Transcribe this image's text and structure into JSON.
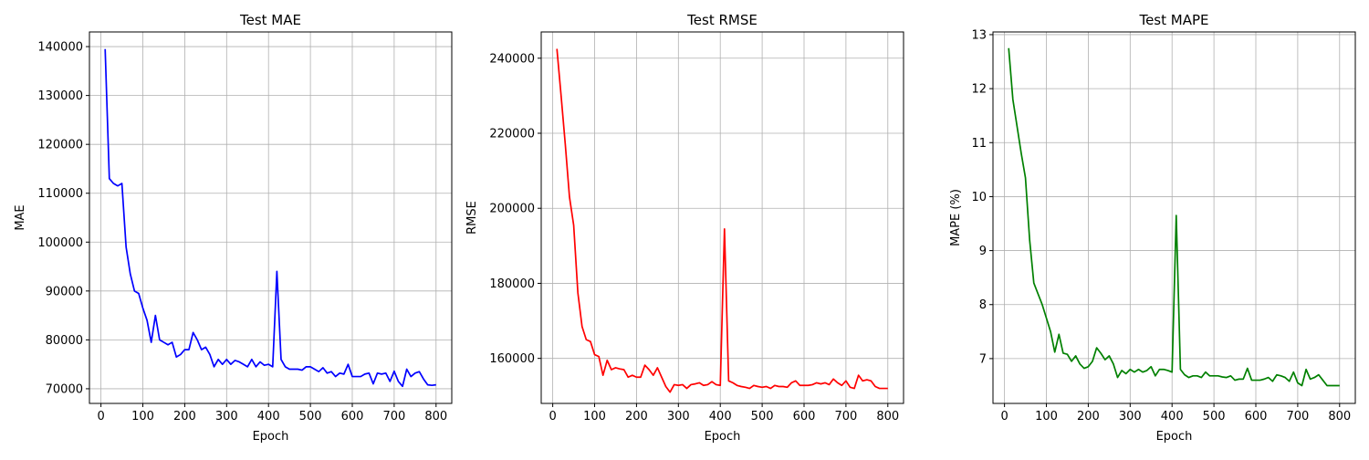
{
  "chart_data": [
    {
      "type": "line",
      "title": "Test MAE",
      "xlabel": "Epoch",
      "ylabel": "MAE",
      "xlim": [
        -27.5,
        837.5
      ],
      "ylim": [
        67000,
        143000
      ],
      "xticks": [
        0,
        100,
        200,
        300,
        400,
        500,
        600,
        700,
        800
      ],
      "yticks": [
        70000,
        80000,
        90000,
        100000,
        110000,
        120000,
        130000,
        140000
      ],
      "grid": true,
      "color": "#0000ff",
      "x": [
        10,
        20,
        30,
        40,
        50,
        60,
        70,
        80,
        90,
        100,
        110,
        120,
        130,
        140,
        150,
        160,
        170,
        180,
        190,
        200,
        210,
        220,
        230,
        240,
        250,
        260,
        270,
        280,
        290,
        300,
        310,
        320,
        330,
        340,
        350,
        360,
        370,
        380,
        390,
        400,
        410,
        420,
        430,
        440,
        450,
        460,
        470,
        480,
        490,
        500,
        510,
        520,
        530,
        540,
        550,
        560,
        570,
        580,
        590,
        600,
        610,
        620,
        630,
        640,
        650,
        660,
        670,
        680,
        690,
        700,
        710,
        720,
        730,
        740,
        750,
        760,
        770,
        780,
        790,
        800
      ],
      "y": [
        139500,
        113000,
        112000,
        111500,
        112000,
        99000,
        93500,
        90000,
        89500,
        86500,
        84000,
        79500,
        85000,
        80000,
        79500,
        79000,
        79500,
        76500,
        77000,
        78000,
        78000,
        81500,
        80000,
        78000,
        78500,
        77000,
        74500,
        76000,
        75000,
        76000,
        75000,
        75800,
        75500,
        75000,
        74500,
        76000,
        74500,
        75500,
        74800,
        75000,
        74500,
        94000,
        76000,
        74500,
        74000,
        74000,
        74000,
        73800,
        74500,
        74500,
        74000,
        73500,
        74300,
        73200,
        73500,
        72500,
        73200,
        73000,
        75000,
        72500,
        72500,
        72500,
        73000,
        73200,
        71000,
        73200,
        73000,
        73200,
        71500,
        73600,
        71500,
        70500,
        74000,
        72500,
        73200,
        73500,
        72000,
        70800,
        70700,
        70800
      ]
    },
    {
      "type": "line",
      "title": "Test RMSE",
      "xlabel": "Epoch",
      "ylabel": "RMSE",
      "xlim": [
        -27.5,
        837.5
      ],
      "ylim": [
        148000,
        247000
      ],
      "xticks": [
        0,
        100,
        200,
        300,
        400,
        500,
        600,
        700,
        800
      ],
      "yticks": [
        160000,
        180000,
        200000,
        220000,
        240000
      ],
      "grid": true,
      "color": "#ff0000",
      "x": [
        10,
        20,
        30,
        40,
        50,
        60,
        70,
        80,
        90,
        100,
        110,
        120,
        130,
        140,
        150,
        160,
        170,
        180,
        190,
        200,
        210,
        220,
        230,
        240,
        250,
        260,
        270,
        280,
        290,
        300,
        310,
        320,
        330,
        340,
        350,
        360,
        370,
        380,
        390,
        400,
        410,
        420,
        430,
        440,
        450,
        460,
        470,
        480,
        490,
        500,
        510,
        520,
        530,
        540,
        550,
        560,
        570,
        580,
        590,
        600,
        610,
        620,
        630,
        640,
        650,
        660,
        670,
        680,
        690,
        700,
        710,
        720,
        730,
        740,
        750,
        760,
        770,
        780,
        790,
        800
      ],
      "y": [
        242500,
        230000,
        217000,
        203000,
        195500,
        177500,
        168500,
        165000,
        164500,
        161000,
        160500,
        155500,
        159500,
        157000,
        157500,
        157200,
        157000,
        155000,
        155500,
        155000,
        155000,
        158200,
        157000,
        155500,
        157500,
        155000,
        152500,
        151000,
        153000,
        152800,
        153000,
        152000,
        153000,
        153200,
        153500,
        152800,
        153000,
        153800,
        153000,
        152800,
        194500,
        154000,
        153500,
        152800,
        152500,
        152300,
        152000,
        152800,
        152500,
        152300,
        152500,
        152000,
        152800,
        152500,
        152500,
        152300,
        153500,
        154000,
        152800,
        152800,
        152800,
        153000,
        153500,
        153200,
        153500,
        153000,
        154500,
        153500,
        152800,
        154000,
        152300,
        152000,
        155500,
        154000,
        154300,
        154000,
        152500,
        152000,
        152000,
        152000
      ]
    },
    {
      "type": "line",
      "title": "Test MAPE",
      "xlabel": "Epoch",
      "ylabel": "MAPE (%)",
      "xlim": [
        -27.5,
        837.5
      ],
      "ylim": [
        6.17,
        13.05
      ],
      "xticks": [
        0,
        100,
        200,
        300,
        400,
        500,
        600,
        700,
        800
      ],
      "yticks": [
        7,
        8,
        9,
        10,
        11,
        12,
        13
      ],
      "grid": true,
      "color": "#008000",
      "x": [
        10,
        20,
        30,
        40,
        50,
        60,
        70,
        80,
        90,
        100,
        110,
        120,
        130,
        140,
        150,
        160,
        170,
        180,
        190,
        200,
        210,
        220,
        230,
        240,
        250,
        260,
        270,
        280,
        290,
        300,
        310,
        320,
        330,
        340,
        350,
        360,
        370,
        380,
        390,
        400,
        410,
        420,
        430,
        440,
        450,
        460,
        470,
        480,
        490,
        500,
        510,
        520,
        530,
        540,
        550,
        560,
        570,
        580,
        590,
        600,
        610,
        620,
        630,
        640,
        650,
        660,
        670,
        680,
        690,
        700,
        710,
        720,
        730,
        740,
        750,
        760,
        770,
        780,
        790,
        800
      ],
      "y": [
        12.75,
        11.8,
        11.3,
        10.8,
        10.35,
        9.2,
        8.4,
        8.2,
        8.0,
        7.75,
        7.5,
        7.12,
        7.45,
        7.1,
        7.08,
        6.95,
        7.05,
        6.9,
        6.82,
        6.85,
        6.95,
        7.2,
        7.1,
        6.98,
        7.05,
        6.9,
        6.65,
        6.78,
        6.72,
        6.8,
        6.75,
        6.8,
        6.75,
        6.78,
        6.85,
        6.68,
        6.8,
        6.8,
        6.78,
        6.75,
        9.65,
        6.8,
        6.7,
        6.65,
        6.68,
        6.68,
        6.65,
        6.75,
        6.68,
        6.68,
        6.68,
        6.66,
        6.65,
        6.68,
        6.6,
        6.62,
        6.62,
        6.82,
        6.6,
        6.6,
        6.6,
        6.62,
        6.65,
        6.58,
        6.7,
        6.68,
        6.65,
        6.58,
        6.75,
        6.55,
        6.5,
        6.8,
        6.62,
        6.65,
        6.7,
        6.6,
        6.5,
        6.5,
        6.5,
        6.5
      ]
    }
  ]
}
